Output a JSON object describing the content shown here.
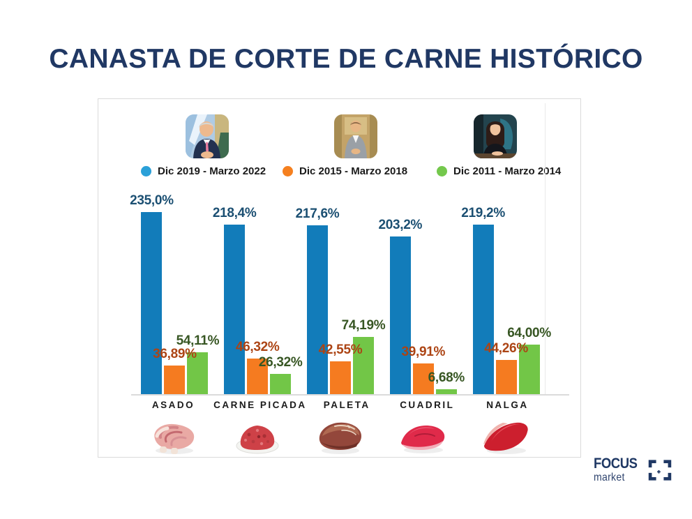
{
  "page": {
    "title": "CANASTA DE CORTE DE CARNE HISTÓRICO"
  },
  "legend": {
    "items": [
      {
        "label": "Dic 2019 - Marzo 2022",
        "dot_color": "#2BA0D8"
      },
      {
        "label": "Dic 2015 - Marzo 2018",
        "dot_color": "#F5801F"
      },
      {
        "label": "Dic 2011 - Marzo 2014",
        "dot_color": "#74C84C"
      }
    ]
  },
  "chart_data": {
    "type": "bar",
    "title": "CANASTA DE CORTE DE CARNE HISTÓRICO",
    "xlabel": "",
    "ylabel": "",
    "categories": [
      "ASADO",
      "CARNE PICADA",
      "PALETA",
      "CUADRIL",
      "NALGA"
    ],
    "series": [
      {
        "name": "Dic 2019 - Marzo 2022",
        "color": "#127CBA",
        "label_color": "#1B4F72",
        "values": [
          235.0,
          218.4,
          217.6,
          203.2,
          219.2
        ],
        "labels": [
          "235,0%",
          "218,4%",
          "217,6%",
          "203,2%",
          "219,2%"
        ]
      },
      {
        "name": "Dic 2015 - Marzo 2018",
        "color": "#F57B20",
        "label_color": "#AC4414",
        "values": [
          36.89,
          46.32,
          42.55,
          39.91,
          44.26
        ],
        "labels": [
          "36,89%",
          "46,32%",
          "42,55%",
          "39,91%",
          "44,26%"
        ]
      },
      {
        "name": "Dic 2011 - Marzo 2014",
        "color": "#72C647",
        "label_color": "#375623",
        "values": [
          54.11,
          26.32,
          74.19,
          6.68,
          64.0
        ],
        "labels": [
          "54,11%",
          "26,32%",
          "74,19%",
          "6,68%",
          "64,00%"
        ]
      }
    ],
    "ylim": [
      0,
      235
    ],
    "grid": false,
    "legend_position": "top"
  },
  "footer": {
    "brand_line1": "FOCUS",
    "brand_line2": "market"
  }
}
